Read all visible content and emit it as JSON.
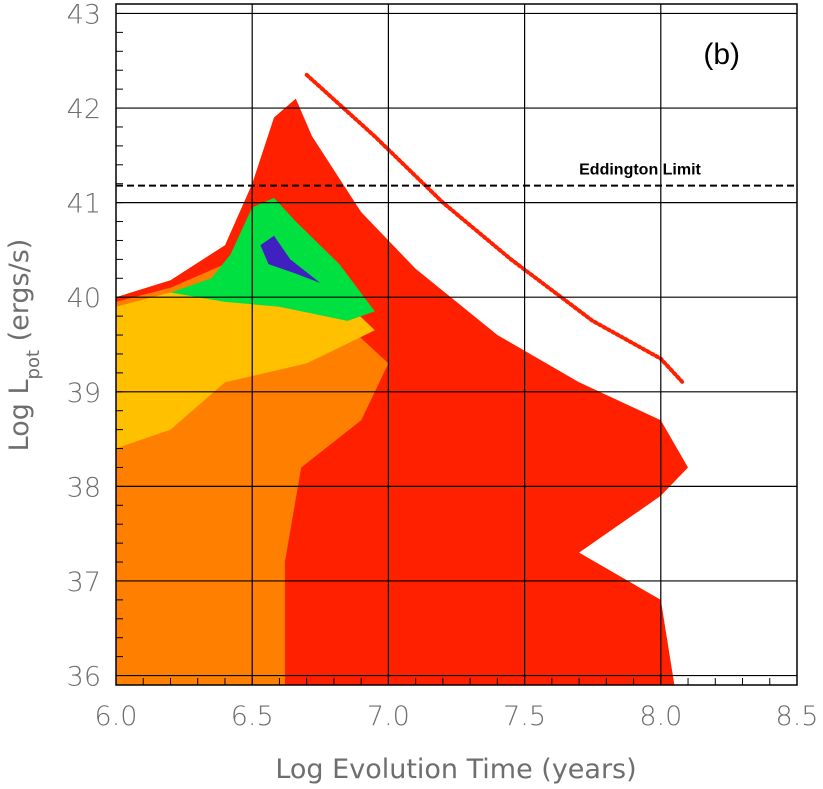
{
  "chart_data": {
    "type": "heatmap",
    "title": "",
    "panel_label": "(b)",
    "xlabel": "Log Evolution Time (years)",
    "ylabel_prefix": "Log L",
    "ylabel_subscript": "pot",
    "ylabel_suffix": " (ergs/s)",
    "xlim": [
      6.0,
      8.5
    ],
    "ylim": [
      35.9,
      43.1
    ],
    "x_ticks": [
      6.0,
      6.5,
      7.0,
      7.5,
      8.0,
      8.5
    ],
    "x_tick_labels": [
      "6.0",
      "6.5",
      "7.0",
      "7.5",
      "8.0",
      "8.5"
    ],
    "y_ticks": [
      36,
      37,
      38,
      39,
      40,
      41,
      42,
      43
    ],
    "y_tick_labels": [
      "36",
      "37",
      "38",
      "39",
      "40",
      "41",
      "42",
      "43"
    ],
    "grid": true,
    "annotations": [
      {
        "text": "Eddington Limit",
        "y": 41.18,
        "style": "dashed-line"
      }
    ],
    "density_levels": [
      {
        "level": "low",
        "color": "#ff2000"
      },
      {
        "level": "medium-low",
        "color": "#ff8000"
      },
      {
        "level": "medium",
        "color": "#ffc000"
      },
      {
        "level": "medium-high",
        "color": "#c8ff00"
      },
      {
        "level": "high",
        "color": "#00e040"
      },
      {
        "level": "very-high",
        "color": "#00c8ff"
      },
      {
        "level": "peak",
        "color": "#4020c0"
      }
    ],
    "regions": [
      {
        "name": "main-envelope",
        "density": "low",
        "boundary": [
          [
            6.0,
            40.0
          ],
          [
            6.2,
            40.18
          ],
          [
            6.4,
            40.55
          ],
          [
            6.5,
            41.2
          ],
          [
            6.58,
            41.9
          ],
          [
            6.66,
            42.1
          ],
          [
            6.72,
            41.7
          ],
          [
            6.9,
            40.9
          ],
          [
            7.1,
            40.3
          ],
          [
            7.4,
            39.6
          ],
          [
            7.7,
            39.1
          ],
          [
            8.0,
            38.7
          ],
          [
            8.1,
            38.2
          ],
          [
            8.0,
            37.9
          ],
          [
            7.7,
            37.3
          ],
          [
            8.0,
            36.8
          ],
          [
            8.05,
            35.9
          ],
          [
            6.0,
            35.9
          ]
        ]
      },
      {
        "name": "dense-lower-left",
        "density": "medium-low",
        "boundary": [
          [
            6.0,
            39.95
          ],
          [
            6.2,
            40.1
          ],
          [
            6.4,
            40.35
          ],
          [
            6.5,
            40.6
          ],
          [
            6.65,
            40.3
          ],
          [
            6.85,
            39.7
          ],
          [
            7.0,
            39.3
          ],
          [
            6.9,
            38.7
          ],
          [
            6.68,
            38.2
          ],
          [
            6.62,
            37.2
          ],
          [
            6.62,
            35.9
          ],
          [
            6.0,
            35.9
          ]
        ]
      },
      {
        "name": "mid-density-band",
        "density": "medium",
        "boundary": [
          [
            6.0,
            39.9
          ],
          [
            6.2,
            40.05
          ],
          [
            6.4,
            40.25
          ],
          [
            6.55,
            40.5
          ],
          [
            6.75,
            40.2
          ],
          [
            6.95,
            39.65
          ],
          [
            6.7,
            39.3
          ],
          [
            6.4,
            39.1
          ],
          [
            6.2,
            38.6
          ],
          [
            6.0,
            38.4
          ]
        ]
      },
      {
        "name": "high-density-core",
        "density": "high",
        "boundary": [
          [
            6.2,
            40.05
          ],
          [
            6.35,
            40.2
          ],
          [
            6.42,
            40.45
          ],
          [
            6.5,
            40.95
          ],
          [
            6.58,
            41.05
          ],
          [
            6.66,
            40.8
          ],
          [
            6.82,
            40.35
          ],
          [
            6.95,
            39.85
          ],
          [
            6.85,
            39.75
          ],
          [
            6.6,
            39.9
          ],
          [
            6.4,
            39.95
          ]
        ]
      },
      {
        "name": "peak-core",
        "density": "peak",
        "boundary": [
          [
            6.53,
            40.55
          ],
          [
            6.58,
            40.65
          ],
          [
            6.64,
            40.4
          ],
          [
            6.75,
            40.15
          ],
          [
            6.66,
            40.25
          ],
          [
            6.56,
            40.35
          ]
        ]
      },
      {
        "name": "late-track",
        "density": "low",
        "polyline": [
          [
            6.7,
            42.35
          ],
          [
            6.95,
            41.7
          ],
          [
            7.2,
            41.0
          ],
          [
            7.45,
            40.4
          ],
          [
            7.75,
            39.75
          ],
          [
            8.0,
            39.35
          ],
          [
            8.08,
            39.1
          ]
        ]
      }
    ]
  }
}
